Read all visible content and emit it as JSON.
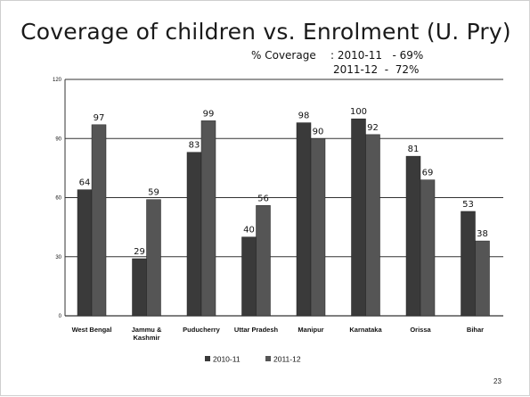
{
  "slide": {
    "title": "Coverage of children vs. Enrolment (U. Pry)",
    "coverage_label": "% Coverage",
    "coverage_2010": ": 2010-11   - 69%",
    "coverage_2011": "2011-12  -  72%",
    "page_number": "23"
  },
  "colors": {
    "bar_2010": "#3a3a3a",
    "bar_2011": "#555555",
    "gridline": "#333333",
    "text": "#111111"
  },
  "chart_data": {
    "type": "bar",
    "title": "",
    "xlabel": "",
    "ylabel": "",
    "ylim": [
      0,
      120
    ],
    "yticks": [
      0,
      30,
      60,
      90,
      120
    ],
    "grid": true,
    "legend_position": "bottom",
    "categories": [
      "West Bengal",
      "Jammu & Kashmir",
      "Puducherry",
      "Uttar Pradesh",
      "Manipur",
      "Karnataka",
      "Orissa",
      "Bihar"
    ],
    "series": [
      {
        "name": "2010-11",
        "values": [
          64,
          29,
          83,
          40,
          98,
          100,
          81,
          53
        ]
      },
      {
        "name": "2011-12",
        "values": [
          97,
          59,
          99,
          56,
          90,
          92,
          69,
          38
        ]
      }
    ]
  }
}
